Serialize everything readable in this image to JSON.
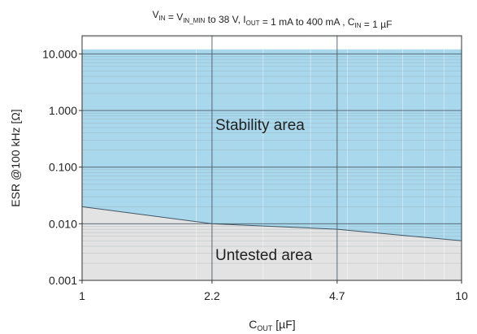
{
  "chart_data": {
    "type": "area",
    "title": {
      "parts": [
        {
          "text": "V",
          "sub": "IN"
        },
        {
          "text": " = V",
          "sub": "IN_MIN"
        },
        {
          "text": " to 38 V, I",
          "sub": "OUT"
        },
        {
          "text": " = 1 mA to 400 mA , C",
          "sub": "IN"
        },
        {
          "text": " = 1 µF",
          "sub": ""
        }
      ]
    },
    "xlabel": {
      "main": "C",
      "sub": "OUT",
      "tail": " [µF]"
    },
    "ylabel": "ESR @100 kHz [Ω]",
    "x_scale": "log",
    "y_scale": "log",
    "xlim": [
      1,
      10
    ],
    "ylim": [
      0.001,
      10
    ],
    "x_ticks": [
      {
        "value": 1,
        "label": "1"
      },
      {
        "value": 2.2,
        "label": "2.2"
      },
      {
        "value": 4.7,
        "label": "4.7"
      },
      {
        "value": 10,
        "label": "10"
      }
    ],
    "y_ticks": [
      {
        "value": 0.001,
        "label": "0.001"
      },
      {
        "value": 0.01,
        "label": "0.010"
      },
      {
        "value": 0.1,
        "label": "0.100"
      },
      {
        "value": 1,
        "label": "1.000"
      },
      {
        "value": 10,
        "label": "10.000"
      }
    ],
    "series": [
      {
        "x": [
          1,
          2.2,
          4.7,
          10
        ],
        "y": [
          0.02,
          0.01,
          0.008,
          0.005
        ]
      }
    ],
    "fill_above_upper": 12,
    "regions": {
      "upper": {
        "label": "Stability area",
        "color": "#a9d8ec"
      },
      "lower": {
        "label": "Untested area",
        "color": "#e3e3e3"
      }
    },
    "grid": true
  }
}
